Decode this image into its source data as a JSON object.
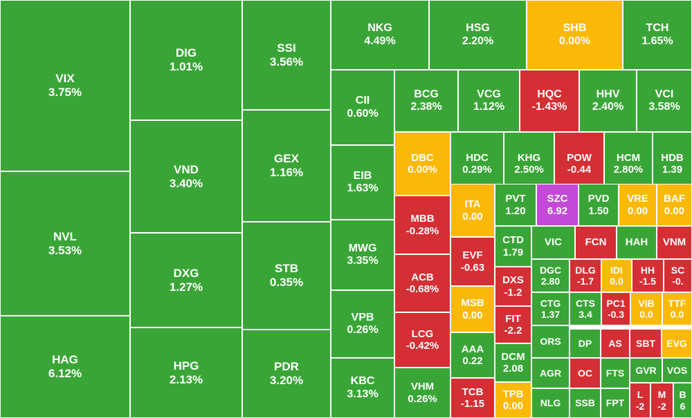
{
  "colors": {
    "up": "#3aa537",
    "down": "#d42f35",
    "flat": "#fbb907",
    "ceiling": "#c34ad6"
  },
  "chart_data": {
    "type": "treemap",
    "tiles": [
      {
        "ticker": "VIX",
        "change": "3.75%",
        "status": "up"
      },
      {
        "ticker": "NVL",
        "change": "3.53%",
        "status": "up"
      },
      {
        "ticker": "HAG",
        "change": "6.12%",
        "status": "up"
      },
      {
        "ticker": "DIG",
        "change": "1.01%",
        "status": "up"
      },
      {
        "ticker": "VND",
        "change": "3.40%",
        "status": "up"
      },
      {
        "ticker": "DXG",
        "change": "1.27%",
        "status": "up"
      },
      {
        "ticker": "HPG",
        "change": "2.13%",
        "status": "up"
      },
      {
        "ticker": "SSI",
        "change": "3.56%",
        "status": "up"
      },
      {
        "ticker": "GEX",
        "change": "1.16%",
        "status": "up"
      },
      {
        "ticker": "STB",
        "change": "0.35%",
        "status": "up"
      },
      {
        "ticker": "PDR",
        "change": "3.20%",
        "status": "up"
      },
      {
        "ticker": "NKG",
        "change": "4.49%",
        "status": "up"
      },
      {
        "ticker": "HSG",
        "change": "2.20%",
        "status": "up"
      },
      {
        "ticker": "SHB",
        "change": "0.00%",
        "status": "flat"
      },
      {
        "ticker": "TCH",
        "change": "1.65%",
        "status": "up"
      },
      {
        "ticker": "CII",
        "change": "0.60%",
        "status": "up"
      },
      {
        "ticker": "EIB",
        "change": "1.63%",
        "status": "up"
      },
      {
        "ticker": "MWG",
        "change": "3.35%",
        "status": "up"
      },
      {
        "ticker": "VPB",
        "change": "0.26%",
        "status": "up"
      },
      {
        "ticker": "KBC",
        "change": "3.13%",
        "status": "up"
      },
      {
        "ticker": "BCG",
        "change": "2.38%",
        "status": "up"
      },
      {
        "ticker": "VCG",
        "change": "1.12%",
        "status": "up"
      },
      {
        "ticker": "HQC",
        "change": "-1.43%",
        "status": "down"
      },
      {
        "ticker": "HHV",
        "change": "2.40%",
        "status": "up"
      },
      {
        "ticker": "VCI",
        "change": "3.58%",
        "status": "up"
      },
      {
        "ticker": "DBC",
        "change": "0.00%",
        "status": "flat"
      },
      {
        "ticker": "HDC",
        "change": "0.29%",
        "status": "up"
      },
      {
        "ticker": "KHG",
        "change": "2.50%",
        "status": "up"
      },
      {
        "ticker": "POW",
        "change": "-0.44",
        "status": "down"
      },
      {
        "ticker": "HCM",
        "change": "2.80%",
        "status": "up"
      },
      {
        "ticker": "HDB",
        "change": "1.39",
        "status": "up"
      },
      {
        "ticker": "MBB",
        "change": "-0.28%",
        "status": "down"
      },
      {
        "ticker": "ACB",
        "change": "-0.68%",
        "status": "down"
      },
      {
        "ticker": "LCG",
        "change": "-0.42%",
        "status": "down"
      },
      {
        "ticker": "VHM",
        "change": "0.26%",
        "status": "up"
      },
      {
        "ticker": "ITA",
        "change": "0.00",
        "status": "flat"
      },
      {
        "ticker": "EVF",
        "change": "-0.63",
        "status": "down"
      },
      {
        "ticker": "MSB",
        "change": "0.00",
        "status": "flat"
      },
      {
        "ticker": "AAA",
        "change": "0.22",
        "status": "up"
      },
      {
        "ticker": "TCB",
        "change": "-1.15",
        "status": "down"
      },
      {
        "ticker": "PVT",
        "change": "1.20",
        "status": "up"
      },
      {
        "ticker": "SZC",
        "change": "6.92",
        "status": "ceiling"
      },
      {
        "ticker": "PVD",
        "change": "1.50",
        "status": "up"
      },
      {
        "ticker": "VRE",
        "change": "0.00",
        "status": "flat"
      },
      {
        "ticker": "BAF",
        "change": "0.00",
        "status": "flat"
      },
      {
        "ticker": "CTD",
        "change": "1.79",
        "status": "up"
      },
      {
        "ticker": "DXS",
        "change": "-1.2",
        "status": "down"
      },
      {
        "ticker": "FIT",
        "change": "-2.2",
        "status": "down"
      },
      {
        "ticker": "DCM",
        "change": "2.08",
        "status": "up"
      },
      {
        "ticker": "TPB",
        "change": "0.00",
        "status": "flat"
      },
      {
        "ticker": "VIC",
        "change": "",
        "status": "up"
      },
      {
        "ticker": "FCN",
        "change": "",
        "status": "down"
      },
      {
        "ticker": "HAH",
        "change": "",
        "status": "up"
      },
      {
        "ticker": "VNM",
        "change": "",
        "status": "down"
      },
      {
        "ticker": "DGC",
        "change": "2.80",
        "status": "up"
      },
      {
        "ticker": "DLG",
        "change": "-1.7",
        "status": "down"
      },
      {
        "ticker": "IDI",
        "change": "0.0",
        "status": "flat"
      },
      {
        "ticker": "HH",
        "change": "-1.5",
        "status": "down"
      },
      {
        "ticker": "SC",
        "change": "-0.",
        "status": "down"
      },
      {
        "ticker": "CTG",
        "change": "1.37",
        "status": "up"
      },
      {
        "ticker": "CTS",
        "change": "3.4",
        "status": "up"
      },
      {
        "ticker": "PC1",
        "change": "-0.3",
        "status": "down"
      },
      {
        "ticker": "VIB",
        "change": "0.0",
        "status": "flat"
      },
      {
        "ticker": "TTF",
        "change": "0.0",
        "status": "flat"
      },
      {
        "ticker": "ORS",
        "change": "",
        "status": "up"
      },
      {
        "ticker": "DP",
        "change": "",
        "status": "up"
      },
      {
        "ticker": "AS",
        "change": "",
        "status": "down"
      },
      {
        "ticker": "SBT",
        "change": "",
        "status": "down"
      },
      {
        "ticker": "EVG",
        "change": "",
        "status": "flat"
      },
      {
        "ticker": "AGR",
        "change": "",
        "status": "up"
      },
      {
        "ticker": "OC",
        "change": "",
        "status": "down"
      },
      {
        "ticker": "FTS",
        "change": "",
        "status": "up"
      },
      {
        "ticker": "GVR",
        "change": "",
        "status": "up"
      },
      {
        "ticker": "VOS",
        "change": "",
        "status": "up"
      },
      {
        "ticker": "NLG",
        "change": "",
        "status": "up"
      },
      {
        "ticker": "SSB",
        "change": "",
        "status": "up"
      },
      {
        "ticker": "FPT",
        "change": "",
        "status": "up"
      },
      {
        "ticker": "L",
        "change": "-2",
        "status": "down"
      },
      {
        "ticker": "M",
        "change": "-2",
        "status": "down"
      },
      {
        "ticker": "B",
        "change": "6",
        "status": "up"
      }
    ]
  }
}
